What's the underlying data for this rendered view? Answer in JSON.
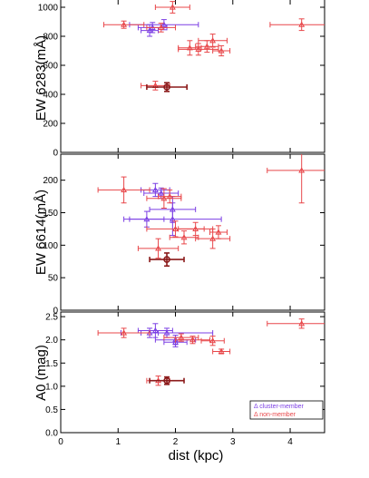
{
  "colors": {
    "cluster_member": "#7b3fe4",
    "non_member": "#e8474a",
    "highlight": "#8b1a1a",
    "axis": "#000000"
  },
  "chart_data": [
    {
      "type": "scatter",
      "ylabel": "EW 6283(mÅ)",
      "xlim": [
        0,
        4.6
      ],
      "ylim": [
        0,
        1050
      ],
      "yticks": [
        0,
        200,
        400,
        600,
        800,
        1000
      ],
      "xtick_labels_shown": false,
      "marker": "triangle",
      "error_bars": true,
      "series": [
        {
          "points": [
            {
              "x": 1.55,
              "y": 840,
              "xerr": 0.15,
              "yerr": 40
            },
            {
              "x": 1.6,
              "y": 860,
              "xerr": 0.25,
              "yerr": 35
            },
            {
              "x": 1.8,
              "y": 880,
              "xerr": 0.6,
              "yerr": 35
            }
          ]
        },
        {
          "points": [
            {
              "x": 1.1,
              "y": 880,
              "xerr": 0.35,
              "yerr": 25
            },
            {
              "x": 1.75,
              "y": 860,
              "xerr": 0.25,
              "yerr": 30
            },
            {
              "x": 1.95,
              "y": 1000,
              "xerr": 0.3,
              "yerr": 40
            },
            {
              "x": 2.25,
              "y": 720,
              "xerr": 0.2,
              "yerr": 50
            },
            {
              "x": 2.4,
              "y": 710,
              "xerr": 0.35,
              "yerr": 40
            },
            {
              "x": 2.55,
              "y": 730,
              "xerr": 0.2,
              "yerr": 40
            },
            {
              "x": 2.65,
              "y": 770,
              "xerr": 0.25,
              "yerr": 45
            },
            {
              "x": 2.8,
              "y": 700,
              "xerr": 0.15,
              "yerr": 35
            },
            {
              "x": 4.2,
              "y": 880,
              "xerr": 0.55,
              "yerr": 40
            },
            {
              "x": 1.65,
              "y": 460,
              "xerr": 0.25,
              "yerr": 30
            }
          ]
        },
        {
          "points": [
            {
              "x": 1.85,
              "y": 450,
              "xerr": 0.35,
              "yerr": 30
            }
          ]
        }
      ]
    },
    {
      "type": "scatter",
      "ylabel": "EW 6614(mÅ)",
      "xlim": [
        0,
        4.6
      ],
      "ylim": [
        0,
        240
      ],
      "yticks": [
        0,
        50,
        100,
        150,
        200
      ],
      "xtick_labels_shown": false,
      "marker": "triangle",
      "error_bars": true,
      "series": [
        {
          "points": [
            {
              "x": 1.5,
              "y": 140,
              "xerr": 0.3,
              "yerr": 12
            },
            {
              "x": 1.65,
              "y": 185,
              "xerr": 0.25,
              "yerr": 10
            },
            {
              "x": 1.75,
              "y": 180,
              "xerr": 0.3,
              "yerr": 8
            },
            {
              "x": 1.95,
              "y": 140,
              "xerr": 0.85,
              "yerr": 25
            },
            {
              "x": 1.95,
              "y": 155,
              "xerr": 0.4,
              "yerr": 20
            }
          ]
        },
        {
          "points": [
            {
              "x": 1.1,
              "y": 185,
              "xerr": 0.45,
              "yerr": 20
            },
            {
              "x": 1.7,
              "y": 95,
              "xerr": 0.35,
              "yerr": 15
            },
            {
              "x": 1.8,
              "y": 172,
              "xerr": 0.3,
              "yerr": 15
            },
            {
              "x": 1.9,
              "y": 175,
              "xerr": 0.2,
              "yerr": 10
            },
            {
              "x": 2.0,
              "y": 125,
              "xerr": 0.5,
              "yerr": 12
            },
            {
              "x": 2.15,
              "y": 112,
              "xerr": 0.25,
              "yerr": 10
            },
            {
              "x": 2.35,
              "y": 125,
              "xerr": 0.3,
              "yerr": 10
            },
            {
              "x": 2.65,
              "y": 110,
              "xerr": 0.3,
              "yerr": 15
            },
            {
              "x": 2.75,
              "y": 120,
              "xerr": 0.15,
              "yerr": 10
            },
            {
              "x": 4.2,
              "y": 215,
              "xerr": 0.6,
              "yerr": 50
            }
          ]
        },
        {
          "points": [
            {
              "x": 1.85,
              "y": 78,
              "xerr": 0.3,
              "yerr": 10
            }
          ]
        }
      ]
    },
    {
      "type": "scatter",
      "ylabel": "A0 (mag)",
      "xlabel": "dist (kpc)",
      "xlim": [
        0,
        4.6
      ],
      "ylim": [
        0,
        2.6
      ],
      "xticks": [
        0,
        1,
        2,
        3,
        4
      ],
      "yticks": [
        0.0,
        0.5,
        1.0,
        1.5,
        2.0,
        2.5
      ],
      "ytick_labels": [
        "0.0",
        "0.5",
        "1.0",
        "1.5",
        "2.0",
        "2.5"
      ],
      "marker": "triangle",
      "error_bars": true,
      "legend": {
        "placement": "bottom-right",
        "entries": [
          {
            "marker": "Δ",
            "label": "cluster-member",
            "color_key": "cluster_member"
          },
          {
            "marker": "Δ",
            "label": "non-member",
            "color_key": "non_member"
          }
        ]
      },
      "series": [
        {
          "points": [
            {
              "x": 1.55,
              "y": 2.15,
              "xerr": 0.15,
              "yerr": 0.1
            },
            {
              "x": 1.65,
              "y": 2.2,
              "xerr": 0.3,
              "yerr": 0.15
            },
            {
              "x": 1.85,
              "y": 2.15,
              "xerr": 0.8,
              "yerr": 0.1
            },
            {
              "x": 2.0,
              "y": 2.0,
              "xerr": 0.35,
              "yerr": 0.1
            },
            {
              "x": 2.0,
              "y": 1.95,
              "xerr": 0.2,
              "yerr": 0.1
            }
          ]
        },
        {
          "points": [
            {
              "x": 1.1,
              "y": 2.15,
              "xerr": 0.45,
              "yerr": 0.1
            },
            {
              "x": 1.7,
              "y": 1.12,
              "xerr": 0.2,
              "yerr": 0.1
            },
            {
              "x": 2.1,
              "y": 2.05,
              "xerr": 0.3,
              "yerr": 0.08
            },
            {
              "x": 2.3,
              "y": 2.0,
              "xerr": 0.3,
              "yerr": 0.08
            },
            {
              "x": 2.65,
              "y": 1.98,
              "xerr": 0.2,
              "yerr": 0.1
            },
            {
              "x": 2.8,
              "y": 1.75,
              "xerr": 0.15,
              "yerr": 0.05
            },
            {
              "x": 4.2,
              "y": 2.35,
              "xerr": 0.6,
              "yerr": 0.1
            }
          ]
        },
        {
          "points": [
            {
              "x": 1.85,
              "y": 1.12,
              "xerr": 0.3,
              "yerr": 0.08
            }
          ]
        }
      ]
    }
  ]
}
